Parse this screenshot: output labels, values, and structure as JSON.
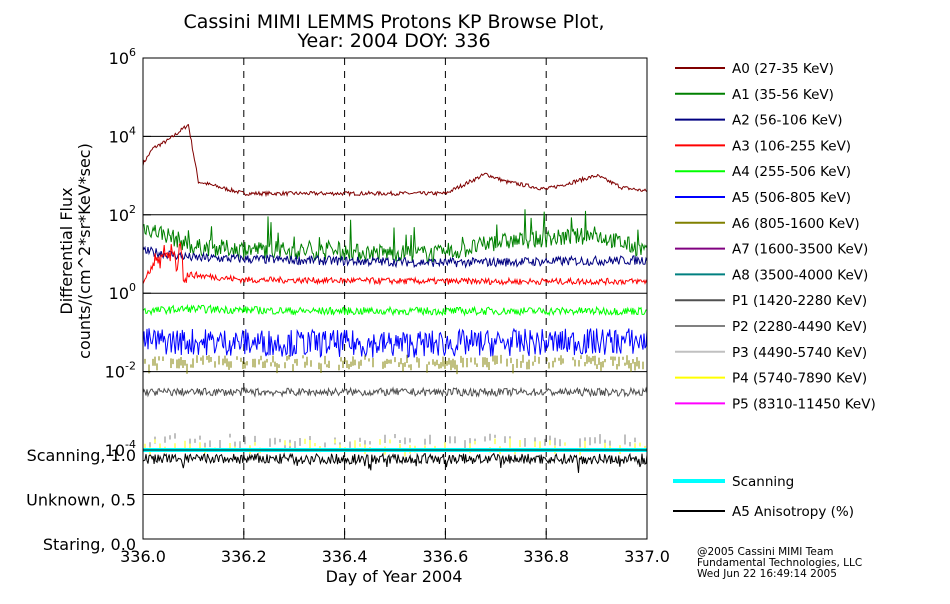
{
  "title_line1": "Cassini MIMI LEMMS Protons KP Browse Plot,",
  "title_line2": "Year: 2004 DOY: 336",
  "credits": [
    "@2005 Cassini MIMI Team",
    "Fundamental Technologies, LLC",
    "Wed Jun 22 16:49:14 2005"
  ],
  "colors": {
    "A0": "#800000",
    "A1": "#008000",
    "A2": "#000080",
    "A3": "#ff0000",
    "A4": "#00ff00",
    "A5": "#0000ff",
    "A6": "#808000",
    "A7": "#800080",
    "A8": "#008080",
    "P1": "#505050",
    "P2": "#808080",
    "P3": "#c0c0c0",
    "P4": "#ffff00",
    "P5": "#ff00ff",
    "scanning": "#00ffff",
    "anisotropy": "#000000"
  },
  "chart_data": {
    "type": "line",
    "xlabel": "Day of Year 2004",
    "x_ticks": [
      "336.0",
      "336.2",
      "336.4",
      "336.6",
      "336.8",
      "337.0"
    ],
    "xlim": [
      336.0,
      337.0
    ],
    "flux_panel": {
      "ylabel_line1": "Differential Flux",
      "ylabel_line2": "counts/(cm^2*sr*KeV*sec)",
      "yscale": "log",
      "ylim": [
        0.0001,
        1000000
      ],
      "y_ticks": [
        {
          "base": "10",
          "exp": "6"
        },
        {
          "base": "10",
          "exp": "4"
        },
        {
          "base": "10",
          "exp": "2"
        },
        {
          "base": "10",
          "exp": "0"
        },
        {
          "base": "10",
          "exp": "-2"
        },
        {
          "base": "10",
          "exp": "-4"
        }
      ],
      "grid": "horizontal solid at decades, vertical dashed at x ticks",
      "series": [
        {
          "key": "A0",
          "name": "A0 (27-35 KeV)",
          "x": [
            336.0,
            336.02,
            336.05,
            336.09,
            336.11,
            336.2,
            336.4,
            336.6,
            336.68,
            336.72,
            336.8,
            336.9,
            336.95,
            337.0
          ],
          "y": [
            2000,
            5000,
            8000,
            20000,
            700,
            350,
            350,
            350,
            1100,
            700,
            450,
            1000,
            500,
            400
          ]
        },
        {
          "key": "A1",
          "name": "A1 (35-56 KeV)",
          "x": [
            336.0,
            336.05,
            336.1,
            336.3,
            336.6,
            336.7,
            336.9,
            337.0
          ],
          "y": [
            50,
            30,
            15,
            12,
            10,
            20,
            30,
            12
          ]
        },
        {
          "key": "A2",
          "name": "A2 (56-106 KeV)",
          "x": [
            336.0,
            336.05,
            336.1,
            336.3,
            336.6,
            337.0
          ],
          "y": [
            12,
            10,
            8,
            7,
            6,
            7
          ]
        },
        {
          "key": "A3",
          "name": "A3 (106-255 KeV)",
          "x": [
            336.0,
            336.03,
            336.06,
            336.09,
            336.2,
            336.6,
            337.0
          ],
          "y": [
            2,
            8,
            10,
            3,
            2.2,
            2,
            2
          ]
        },
        {
          "key": "A4",
          "name": "A4 (255-506 KeV)",
          "x": [
            336.0,
            336.09,
            336.3,
            336.6,
            337.0
          ],
          "y": [
            0.35,
            0.4,
            0.35,
            0.35,
            0.35
          ]
        },
        {
          "key": "A5",
          "name": "A5 (506-805 KeV)",
          "x": [
            336.0,
            336.5,
            337.0
          ],
          "y": [
            0.06,
            0.05,
            0.06
          ]
        },
        {
          "key": "A6",
          "name": "A6 (805-1600 KeV)",
          "x": [
            336.0,
            336.5,
            337.0
          ],
          "y": [
            0.02,
            0.02,
            0.02
          ]
        },
        {
          "key": "A7",
          "name": "A7 (1600-3500 KeV)",
          "x": [],
          "y": []
        },
        {
          "key": "A8",
          "name": "A8 (3500-4000 KeV)",
          "x": [],
          "y": []
        },
        {
          "key": "P1",
          "name": "P1 (1420-2280 KeV)",
          "x": [
            336.0,
            336.5,
            337.0
          ],
          "y": [
            0.003,
            0.003,
            0.003
          ]
        },
        {
          "key": "P2",
          "name": "P2 (2280-4490 KeV)",
          "x": [
            336.0,
            336.5,
            337.0
          ],
          "y": [
            0.0002,
            0.0002,
            0.0002
          ]
        },
        {
          "key": "P3",
          "name": "P3 (4490-5740 KeV)",
          "x": [],
          "y": []
        },
        {
          "key": "P4",
          "name": "P4 (5740-7890 KeV)",
          "x": [
            336.0,
            336.5,
            337.0
          ],
          "y": [
            0.00015,
            0.00015,
            0.00015
          ]
        },
        {
          "key": "P5",
          "name": "P5 (8310-11450 KeV)",
          "x": [],
          "y": []
        }
      ]
    },
    "mode_panel": {
      "y_ticks": [
        "Scanning, 1.0",
        "Unknown, 0.5",
        "Staring, 0.0"
      ],
      "ylim": [
        0.0,
        1.0
      ],
      "series": [
        {
          "key": "scanning",
          "name": "Scanning",
          "x": [
            336.0,
            337.0
          ],
          "y": [
            1.0,
            1.0
          ]
        },
        {
          "key": "anisotropy",
          "name": "A5 Anisotropy (%)",
          "x": [
            336.0,
            336.5,
            337.0
          ],
          "y": [
            0.9,
            0.9,
            0.9
          ]
        }
      ]
    }
  }
}
